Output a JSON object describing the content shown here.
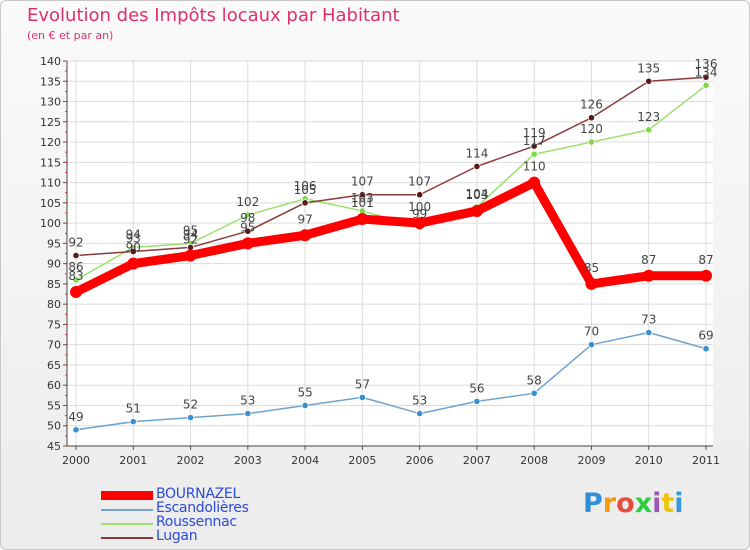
{
  "header": {
    "title": "Evolution des Impôts locaux par Habitant",
    "subtitle": "(en € et par an)"
  },
  "logo": {
    "text": "Proxiti",
    "letter_colors": [
      "#2f8fd8",
      "#f39c12",
      "#e74c3c",
      "#2ecc40",
      "#9b59b6",
      "#f1c40f",
      "#3498db"
    ]
  },
  "chart_data": {
    "type": "line",
    "title": "Evolution des Impôts locaux par Habitant",
    "subtitle": "(en € et par an)",
    "xlabel": "",
    "ylabel": "",
    "x": [
      "2000",
      "2001",
      "2002",
      "2003",
      "2004",
      "2005",
      "2006",
      "2007",
      "2008",
      "2009",
      "2010",
      "2011"
    ],
    "ylim": [
      45,
      140
    ],
    "yticks": [
      45,
      50,
      55,
      60,
      65,
      70,
      75,
      80,
      85,
      90,
      95,
      100,
      105,
      110,
      115,
      120,
      125,
      130,
      135,
      140
    ],
    "grid": true,
    "legend_position": "bottom-left",
    "series": [
      {
        "name": "BOURNAZEL",
        "color": "#ff0000",
        "values": [
          83,
          90,
          92,
          95,
          97,
          101,
          100,
          103,
          110,
          85,
          87,
          87
        ],
        "labels": [
          "83",
          "90",
          "92",
          "95",
          "97",
          "101",
          "100",
          "103",
          "110",
          "85",
          "87",
          "87"
        ]
      },
      {
        "name": "Escandolières",
        "color": "#6fa3cf",
        "values": [
          49,
          51,
          52,
          53,
          55,
          57,
          53,
          56,
          58,
          70,
          73,
          69
        ],
        "labels": [
          "49",
          "51",
          "52",
          "53",
          "55",
          "57",
          "53",
          "56",
          "58",
          "70",
          "73",
          "69"
        ]
      },
      {
        "name": "Roussennac",
        "color": "#9ae06a",
        "values": [
          86,
          94,
          95,
          102,
          106,
          103,
          99,
          104,
          117,
          120,
          123,
          134
        ],
        "labels": [
          "86",
          "94",
          "95",
          "102",
          "106",
          "103",
          "99",
          "104",
          "117",
          "120",
          "123",
          "134"
        ]
      },
      {
        "name": "Lugan",
        "color": "#8b3a3a",
        "values": [
          92,
          93,
          94,
          98,
          105,
          107,
          107,
          114,
          119,
          126,
          135,
          136
        ],
        "labels": [
          "92",
          "93",
          "94",
          "98",
          "105",
          "107",
          "107",
          "114",
          "119",
          "126",
          "135",
          "136"
        ]
      }
    ]
  }
}
